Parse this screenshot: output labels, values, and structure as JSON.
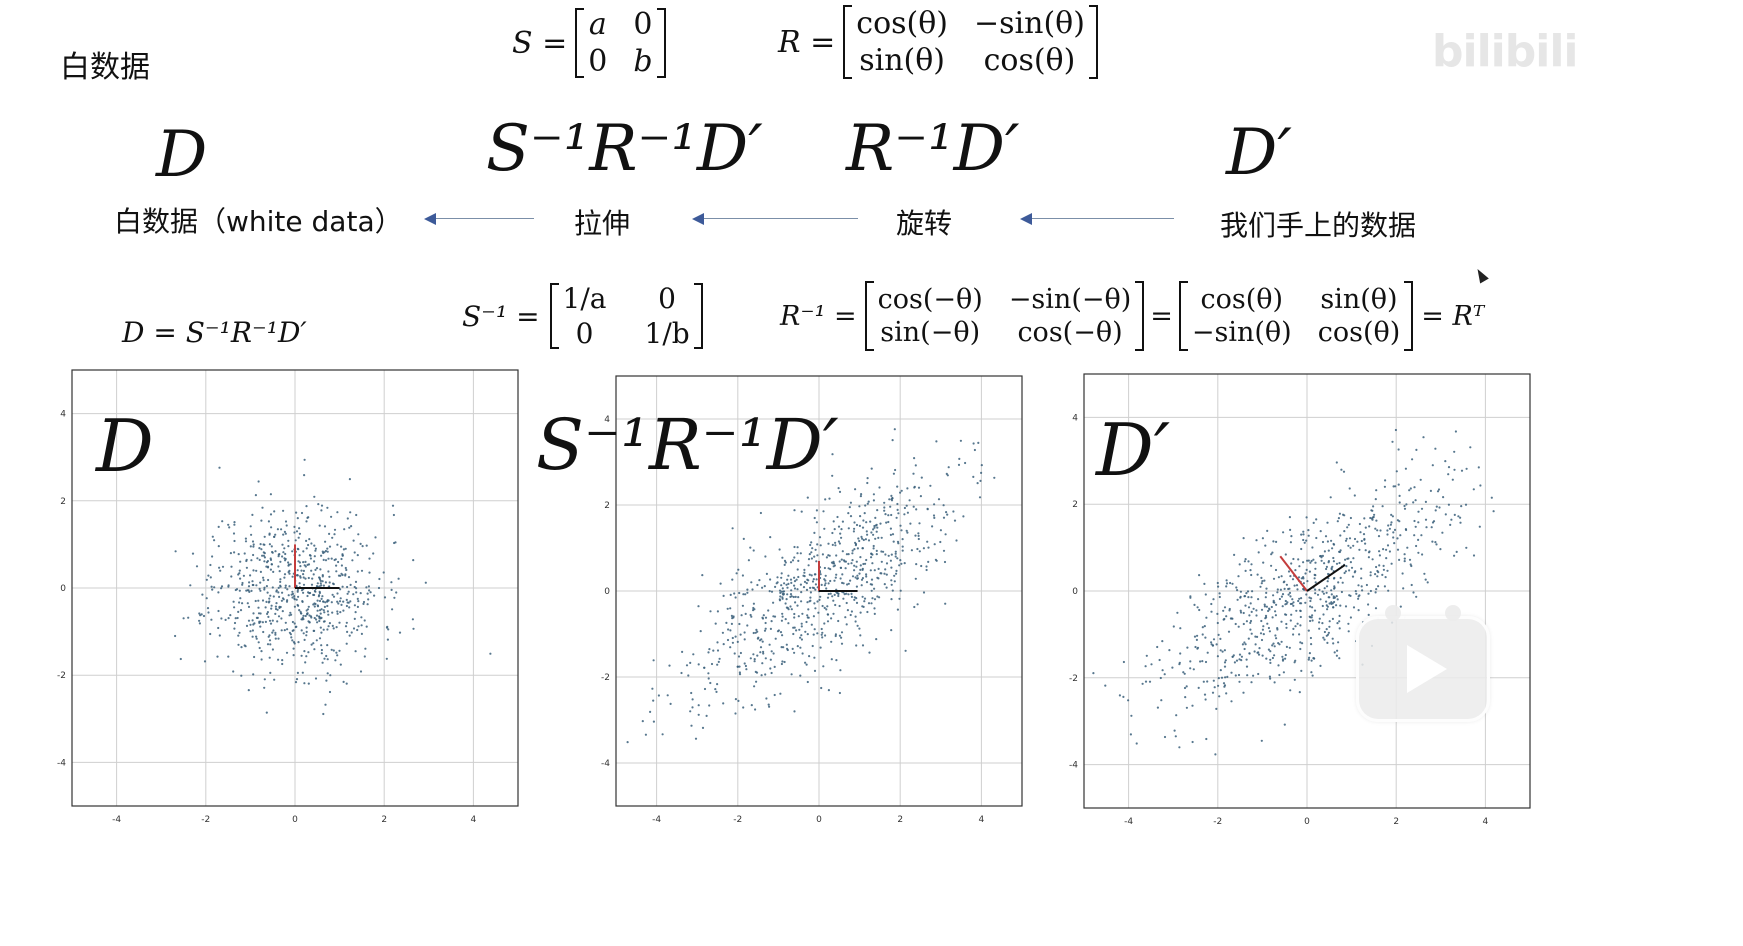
{
  "header": {
    "top_left_label": "白数据",
    "S_lhs": "S =",
    "S_matrix": [
      [
        "a",
        "0"
      ],
      [
        "0",
        "b"
      ]
    ],
    "R_lhs": "R =",
    "R_matrix": [
      [
        "cos(θ)",
        "−sin(θ)"
      ],
      [
        "sin(θ)",
        "cos(θ)"
      ]
    ]
  },
  "flow": {
    "symbols": [
      "D",
      "S⁻¹R⁻¹D′",
      "R⁻¹D′",
      "D′"
    ],
    "labels": [
      "白数据（white data）",
      "拉伸",
      "旋转",
      "我们手上的数据"
    ]
  },
  "formulas": {
    "D_equation": "D = S⁻¹R⁻¹D′",
    "S_inv_lhs": "S⁻¹ =",
    "S_inv_matrix": [
      [
        "1/a",
        "0"
      ],
      [
        "0",
        "1/b"
      ]
    ],
    "R_inv_lhs": "R⁻¹ =",
    "R_inv_matrix": [
      [
        "cos(−θ)",
        "−sin(−θ)"
      ],
      [
        "sin(−θ)",
        "cos(−θ)"
      ]
    ],
    "eq": "=",
    "R_T_matrix": [
      [
        "cos(θ)",
        "sin(θ)"
      ],
      [
        "−sin(θ)",
        "cos(θ)"
      ]
    ],
    "R_T_rhs": "= Rᵀ"
  },
  "plots": [
    {
      "title": "D",
      "type": "scatter",
      "xlim": [
        -5,
        5
      ],
      "ylim": [
        -5,
        5
      ],
      "ticks": [
        -4,
        -2,
        0,
        2,
        4
      ],
      "grid": true,
      "cloud": {
        "sx": 0.95,
        "sy": 0.95,
        "angle_deg": 0,
        "n": 750,
        "seed": 11
      },
      "axes_vectors": [
        {
          "color": "#c43d3d",
          "dx": 0.0,
          "dy": 1.0
        },
        {
          "color": "#111111",
          "dx": 1.0,
          "dy": 0.0
        }
      ]
    },
    {
      "title": "S⁻¹R⁻¹D′",
      "type": "scatter",
      "xlim": [
        -5,
        5
      ],
      "ylim": [
        -5,
        5
      ],
      "ticks": [
        -4,
        -2,
        0,
        2,
        4
      ],
      "grid": true,
      "cloud": {
        "sx": 2.0,
        "sy": 0.75,
        "angle_deg": 36,
        "n": 800,
        "seed": 23
      },
      "axes_vectors": [
        {
          "color": "#c43d3d",
          "dx": 0.0,
          "dy": 0.7
        },
        {
          "color": "#111111",
          "dx": 0.95,
          "dy": 0.0
        }
      ]
    },
    {
      "title": "D′",
      "type": "scatter",
      "xlim": [
        -5,
        5
      ],
      "ylim": [
        -5,
        5
      ],
      "ticks": [
        -4,
        -2,
        0,
        2,
        4
      ],
      "grid": true,
      "cloud": {
        "sx": 2.0,
        "sy": 0.75,
        "angle_deg": 36,
        "n": 800,
        "seed": 37
      },
      "axes_vectors": [
        {
          "color": "#c43d3d",
          "dx": -0.6,
          "dy": 0.8
        },
        {
          "color": "#111111",
          "dx": 0.85,
          "dy": 0.6
        }
      ]
    }
  ],
  "tick_labels": [
    "-4",
    "-2",
    "0",
    "2",
    "4"
  ],
  "colors": {
    "point": "#3a5f7a",
    "grid": "#cfcfcf",
    "arrow": "#3d5a99"
  },
  "watermark_text": "bilibili"
}
